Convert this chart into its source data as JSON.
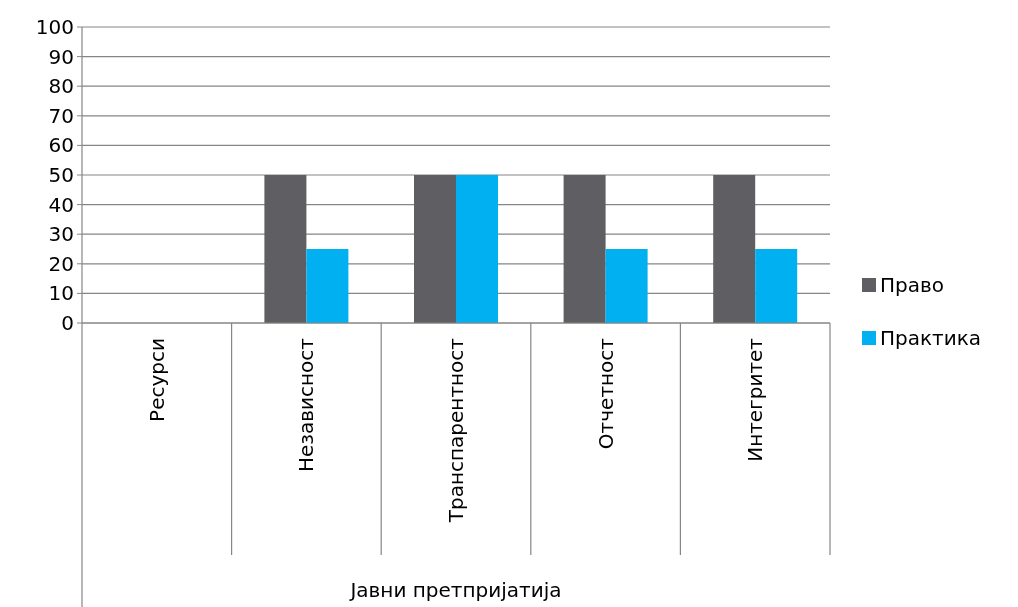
{
  "chart_data": {
    "type": "bar",
    "categories": [
      "Ресурси",
      "Независност",
      "Транспарентност",
      "Отчетност",
      "Интегритет"
    ],
    "xlabel": "Јавни претпријатија",
    "series": [
      {
        "name": "Право",
        "color": "#5f5f63",
        "values": [
          0,
          50,
          50,
          50,
          50
        ]
      },
      {
        "name": "Практика",
        "color": "#00b0f0",
        "values": [
          0,
          25,
          50,
          25,
          25
        ]
      }
    ],
    "ylim": [
      0,
      100
    ],
    "yticks": [
      0,
      10,
      20,
      30,
      40,
      50,
      60,
      70,
      80,
      90,
      100
    ],
    "grid": "y",
    "legend": "right"
  }
}
